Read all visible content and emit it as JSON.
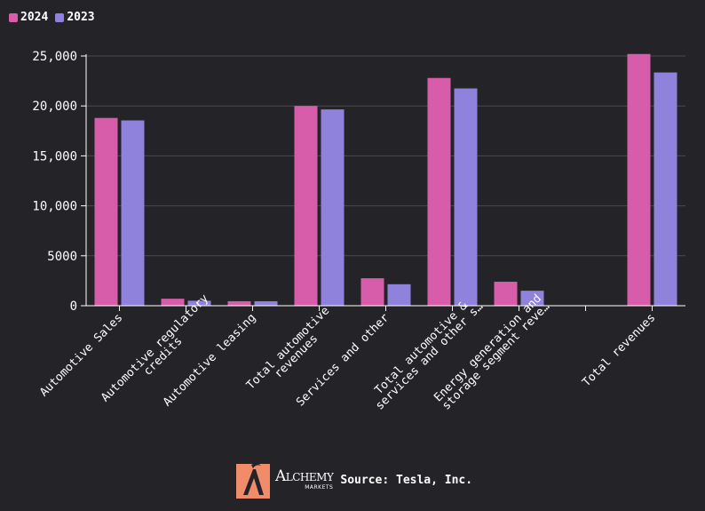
{
  "legend": [
    {
      "label": "2024",
      "color": "#d75ca9"
    },
    {
      "label": "2023",
      "color": "#8f82dc"
    }
  ],
  "footer": {
    "brand_name": "Alchemy",
    "brand_sub": "MARKETS",
    "source": "Source: Tesla, Inc."
  },
  "colors": {
    "background": "#242328",
    "grid": "#4a4a50",
    "axis": "#ffffff",
    "logo": "#f08c6a"
  },
  "chart_data": {
    "type": "bar",
    "categories": [
      [
        "Automotive Sales"
      ],
      [
        "Automotive regulatory",
        "credits"
      ],
      [
        "Automotive leasing"
      ],
      [
        "Total automotive",
        "revenues"
      ],
      [
        "Services and other"
      ],
      [
        "Total automotive &",
        "services and other s…"
      ],
      [
        "Energy generation and",
        "storage segment reve…"
      ],
      [
        ""
      ],
      [
        "Total revenues"
      ]
    ],
    "series": [
      {
        "name": "2024",
        "color": "#d75ca9",
        "values": [
          18800,
          700,
          450,
          20000,
          2750,
          22800,
          2400,
          null,
          25200
        ]
      },
      {
        "name": "2023",
        "color": "#8f82dc",
        "values": [
          18550,
          500,
          450,
          19650,
          2150,
          21750,
          1500,
          null,
          23350
        ]
      }
    ],
    "y_ticks": [
      0,
      5000,
      10000,
      15000,
      20000,
      25000
    ],
    "y_tick_labels": [
      "0",
      "5000",
      "10,000",
      "15,000",
      "20,000",
      "25,000"
    ],
    "ylim": [
      0,
      25000
    ],
    "grid": true,
    "legend_position": "top-left"
  }
}
